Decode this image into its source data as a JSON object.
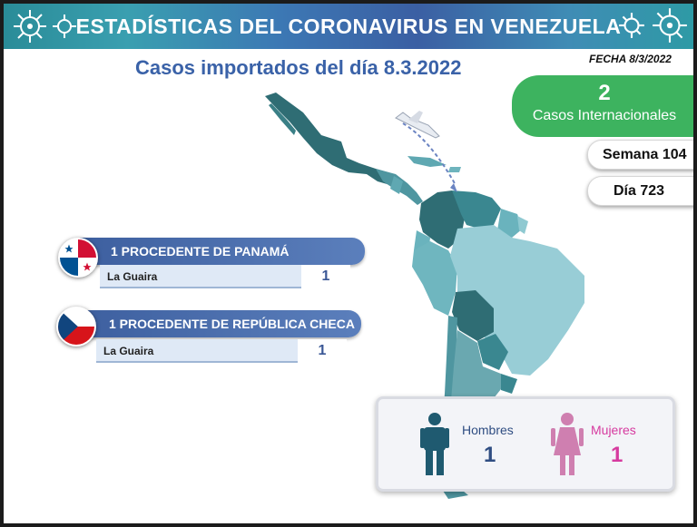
{
  "header": {
    "title": "ESTADÍSTICAS DEL CORONAVIRUS EN VENEZUELA",
    "subtitle": "Casos importados del día 8.3.2022",
    "fecha": "FECHA 8/3/2022"
  },
  "summary": {
    "international_count": "2",
    "international_label": "Casos Internacionales",
    "semana": "Semana 104",
    "dia": "Día 723"
  },
  "origins": [
    {
      "title": "1 PROCEDENTE DE PANAMÁ",
      "city": "La Guaira",
      "count": "1"
    },
    {
      "title": "1 PROCEDENTE DE REPÚBLICA CHECA",
      "city": "La Guaira",
      "count": "1"
    }
  ],
  "gender": {
    "men_label": "Hombres",
    "men_count": "1",
    "women_label": "Mujeres",
    "women_count": "1"
  },
  "colors": {
    "accent_blue": "#3a62a8",
    "green": "#3db35f",
    "men": "#2f4d82",
    "women": "#d63a9f",
    "women_figure": "#cf7fb0",
    "men_figure": "#1f5a70"
  },
  "icons": [
    "virus-icon",
    "airplane-icon",
    "panama-flag-icon",
    "czech-flag-icon",
    "man-icon",
    "woman-icon"
  ]
}
